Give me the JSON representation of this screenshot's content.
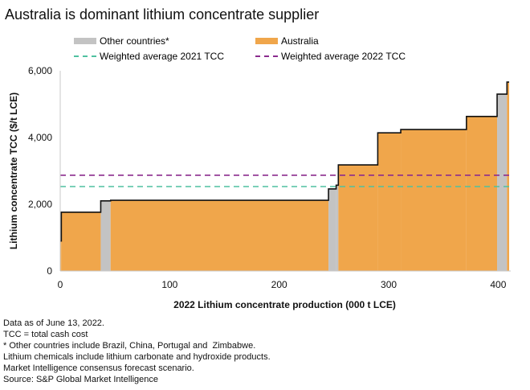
{
  "chart_data": {
    "type": "area",
    "subtype": "cost-curve-step",
    "title": "Australia is dominant lithium concentrate supplier",
    "xlabel": "2022 Lithium concentrate production (000 t LCE)",
    "ylabel": "Lithium concentrate TCC ($/t LCE)",
    "xlim": [
      0,
      410
    ],
    "ylim": [
      0,
      6000
    ],
    "xticks": [
      "0",
      "100",
      "200",
      "300",
      "400"
    ],
    "xtick_values": [
      0,
      100,
      200,
      300,
      400
    ],
    "yticks": [
      "0",
      "2,000",
      "4,000",
      "6,000"
    ],
    "ytick_values": [
      0,
      2000,
      4000,
      6000
    ],
    "grid": false,
    "legend_position": "top",
    "series": [
      {
        "name": "Other countries*",
        "color": "#c3c3c3"
      },
      {
        "name": "Australia",
        "color": "#f0a64b"
      }
    ],
    "segments": [
      {
        "series": "Australia",
        "x_start": 0,
        "x_end": 1,
        "value": 900
      },
      {
        "series": "Australia",
        "x_start": 1,
        "x_end": 37,
        "value": 1760
      },
      {
        "series": "Other countries*",
        "x_start": 37,
        "x_end": 46,
        "value": 2100
      },
      {
        "series": "Australia",
        "x_start": 46,
        "x_end": 245,
        "value": 2120
      },
      {
        "series": "Other countries*",
        "x_start": 245,
        "x_end": 252,
        "value": 2460
      },
      {
        "series": "Other countries*",
        "x_start": 252,
        "x_end": 254,
        "value": 2570
      },
      {
        "series": "Australia",
        "x_start": 254,
        "x_end": 290,
        "value": 3180
      },
      {
        "series": "Australia",
        "x_start": 290,
        "x_end": 311,
        "value": 4140
      },
      {
        "series": "Australia",
        "x_start": 311,
        "x_end": 371,
        "value": 4240
      },
      {
        "series": "Australia",
        "x_start": 371,
        "x_end": 399,
        "value": 4630
      },
      {
        "series": "Other countries*",
        "x_start": 399,
        "x_end": 408,
        "value": 5300
      },
      {
        "series": "Australia",
        "x_start": 408,
        "x_end": 410,
        "value": 5660
      }
    ],
    "reference_lines": [
      {
        "name": "Weighted average 2021 TCC",
        "value": 2530,
        "color": "#4fc1a0",
        "style": "dashed"
      },
      {
        "name": "Weighted average 2022 TCC",
        "value": 2870,
        "color": "#8b2b8e",
        "style": "dashed"
      }
    ]
  },
  "legend": {
    "other": "Other countries*",
    "australia": "Australia",
    "avg2021": "Weighted average 2021 TCC",
    "avg2022": "Weighted average 2022 TCC"
  },
  "notes": [
    "Data as of June 13, 2022.",
    "TCC = total cash cost",
    "* Other countries include Brazil, China, Portugal and  Zimbabwe.",
    "Lithium chemicals include lithium carbonate and hydroxide products.",
    "Market Intelligence consensus forecast scenario.",
    "Source: S&P Global Market Intelligence"
  ]
}
